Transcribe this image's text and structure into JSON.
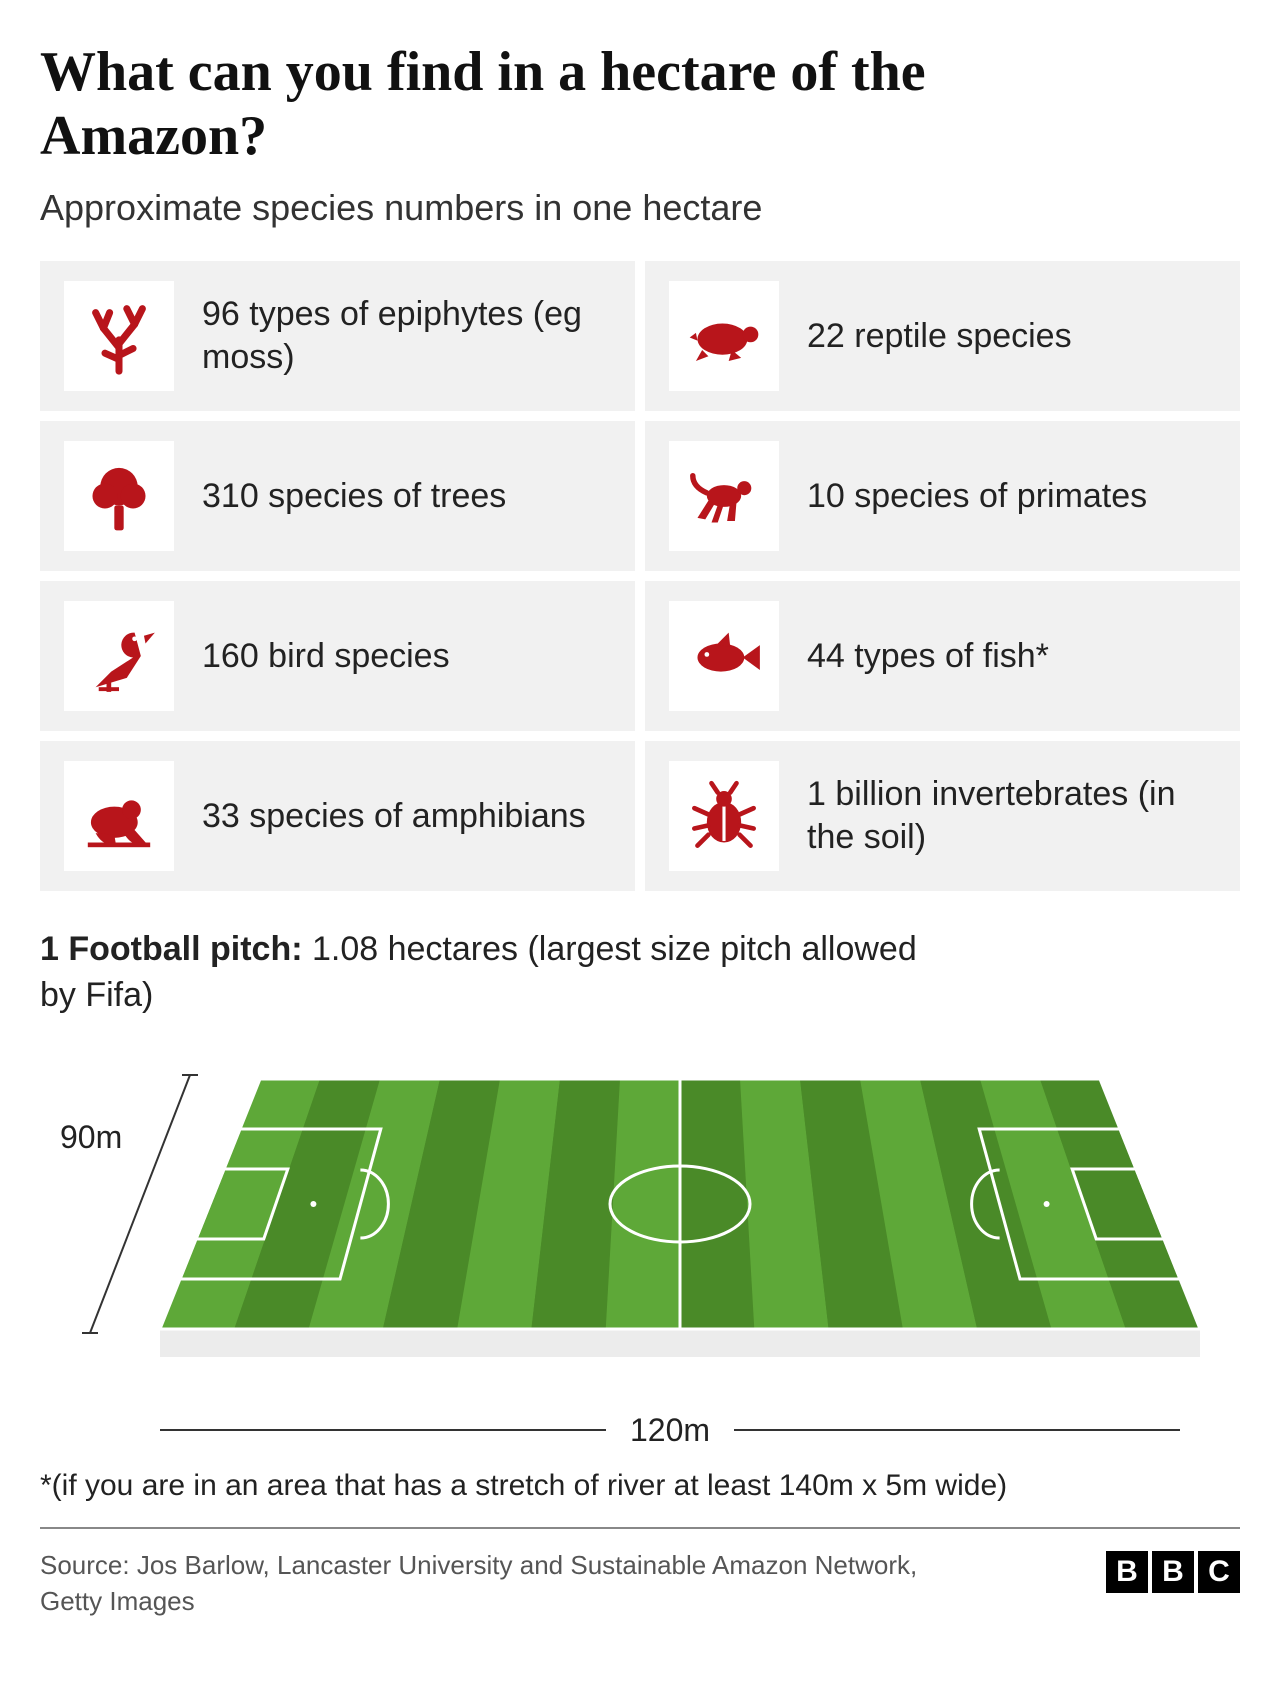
{
  "title": "What can you find in a hectare of the Amazon?",
  "subtitle": "Approximate species numbers in one hectare",
  "icon_color": "#b8151b",
  "card_bg": "#f1f1f1",
  "cards": [
    {
      "icon": "coral",
      "label": "96 types of epiphytes (eg moss)"
    },
    {
      "icon": "turtle",
      "label": "22 reptile species"
    },
    {
      "icon": "tree",
      "label": "310 species of trees"
    },
    {
      "icon": "monkey",
      "label": "10 species of primates"
    },
    {
      "icon": "bird",
      "label": "160 bird species"
    },
    {
      "icon": "fish",
      "label": "44 types of fish*"
    },
    {
      "icon": "frog",
      "label": "33 species of amphibians"
    },
    {
      "icon": "beetle",
      "label": "1 billion invertebrates (in the soil)"
    }
  ],
  "pitch": {
    "label_bold": "1 Football pitch:",
    "label_rest": " 1.08 hectares (largest size pitch allowed by Fifa)",
    "width_label": "120m",
    "height_label": "90m",
    "grass_dark": "#4a8a28",
    "grass_light": "#5ea838",
    "side_color": "#ececec",
    "line_color": "#ffffff"
  },
  "footnote": "*(if you are in an area that has a stretch of river at least 140m x 5m wide)",
  "source": "Source: Jos Barlow, Lancaster University and Sustainable Amazon Network, Getty Images",
  "logo_letters": [
    "B",
    "B",
    "C"
  ]
}
